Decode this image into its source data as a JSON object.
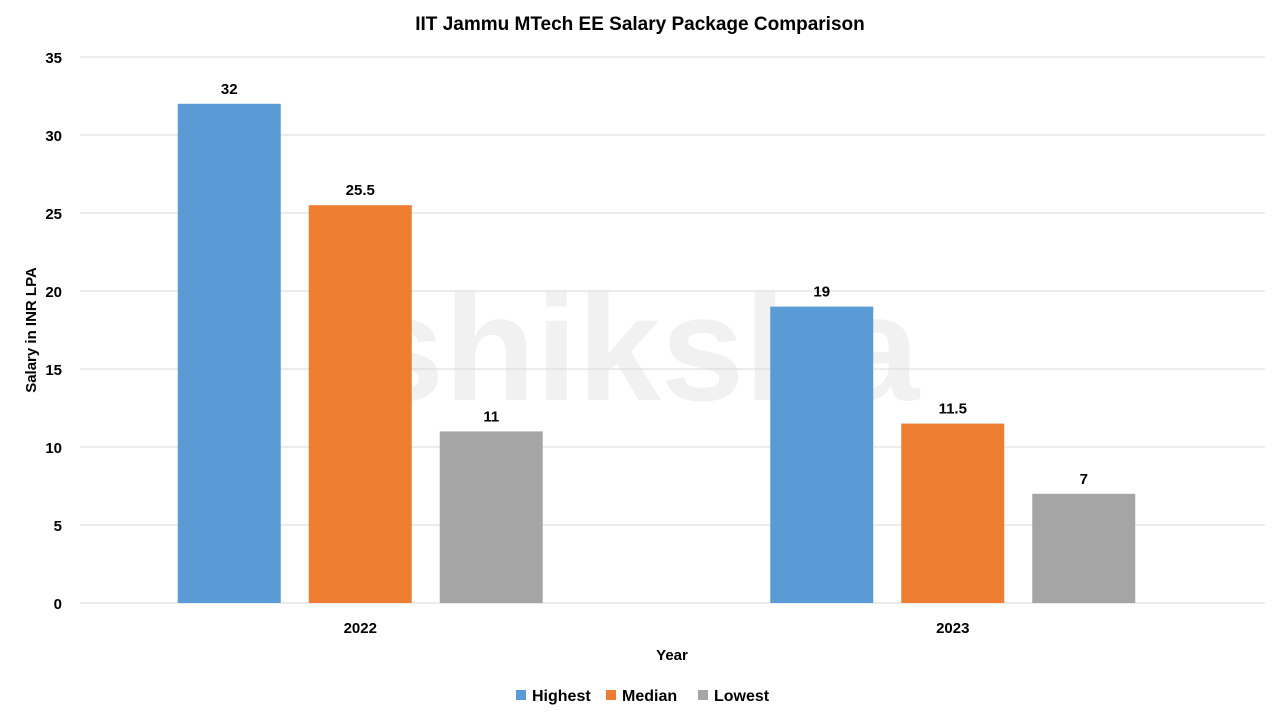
{
  "watermark": "shiksha",
  "chart_data": {
    "type": "bar",
    "title": "IIT Jammu MTech EE Salary Package Comparison",
    "xlabel": "Year",
    "ylabel": "Salary in INR LPA",
    "categories": [
      "2022",
      "2023"
    ],
    "series": [
      {
        "name": "Highest",
        "values": [
          32,
          19
        ],
        "color": "#5B9BD5"
      },
      {
        "name": "Median",
        "values": [
          25.5,
          11.5
        ],
        "color": "#ED7D31"
      },
      {
        "name": "Lowest",
        "values": [
          11,
          7
        ],
        "color": "#A5A5A5"
      }
    ],
    "ylim": [
      0,
      35
    ],
    "yticks": [
      0,
      5,
      10,
      15,
      20,
      25,
      30,
      35
    ],
    "grid": true,
    "data_labels": true,
    "legend": "bottom"
  }
}
